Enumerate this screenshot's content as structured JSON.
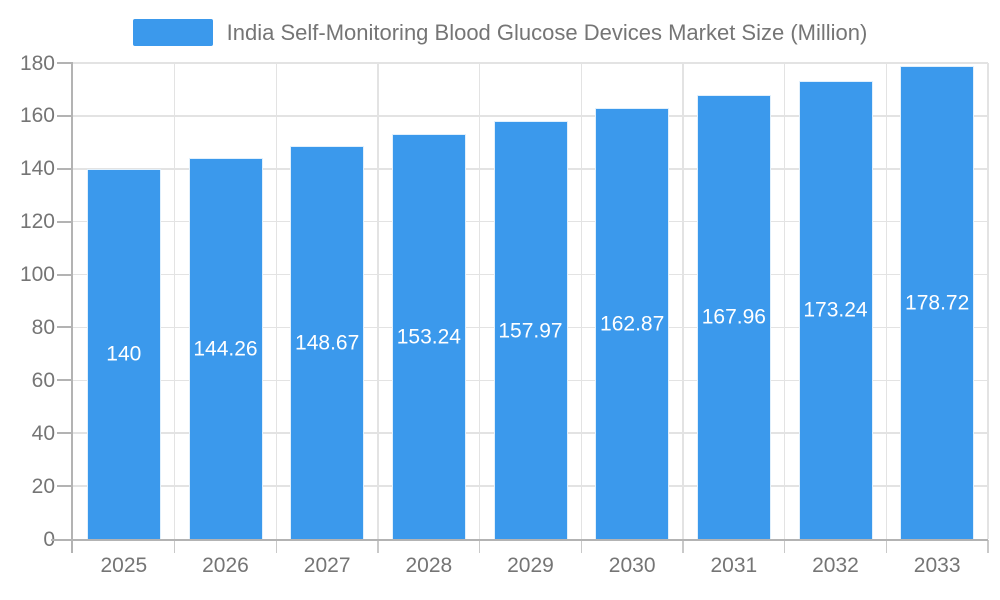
{
  "legend": {
    "label": "India Self-Monitoring Blood Glucose Devices Market Size (Million)"
  },
  "colors": {
    "bar": "#3B99EC",
    "bar_border": "rgba(255,255,255,0.85)",
    "axis_line": "#B3B3B3",
    "gridline": "#E3E3E3",
    "tick": "#C9C9C9",
    "tick_label": "#757575",
    "value_label": "#FFFFFF",
    "background": "#FFFFFF"
  },
  "chart_data": {
    "type": "bar",
    "title": "India Self-Monitoring Blood Glucose Devices Market Size (Million)",
    "categories": [
      "2025",
      "2026",
      "2027",
      "2028",
      "2029",
      "2030",
      "2031",
      "2032",
      "2033"
    ],
    "values": [
      140,
      144.26,
      148.67,
      153.24,
      157.97,
      162.87,
      167.96,
      173.24,
      178.72
    ],
    "value_labels": [
      "140",
      "144.26",
      "148.67",
      "153.24",
      "157.97",
      "162.87",
      "167.96",
      "173.24",
      "178.72"
    ],
    "xlabel": "",
    "ylabel": "",
    "ylim": [
      0,
      180
    ],
    "ytick_step": 20,
    "yticks": [
      0,
      20,
      40,
      60,
      80,
      100,
      120,
      140,
      160,
      180
    ],
    "grid": true,
    "legend_position": "top",
    "value_label_position": "inside-middle"
  }
}
